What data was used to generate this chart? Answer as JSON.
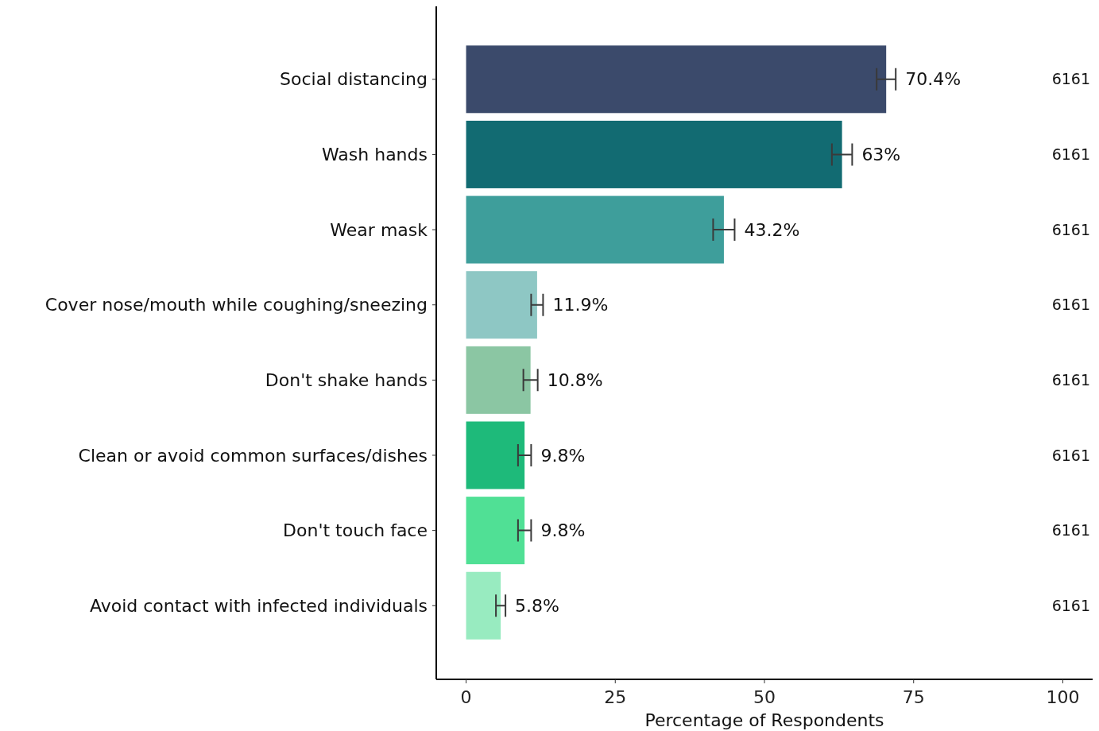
{
  "chart_data": {
    "type": "bar",
    "orientation": "horizontal",
    "xlabel": "Percentage of Respondents",
    "categories": [
      "Social distancing",
      "Wash hands",
      "Wear mask",
      "Cover nose/mouth while coughing/sneezing",
      "Don't shake hands",
      "Clean or avoid common surfaces/dishes",
      "Don't touch face",
      "Avoid contact with infected individuals"
    ],
    "values": [
      70.4,
      63,
      43.2,
      11.9,
      10.8,
      9.8,
      9.8,
      5.8
    ],
    "colors": [
      "#3b4a6b",
      "#126b72",
      "#3e9e9b",
      "#8ec7c4",
      "#8bc6a3",
      "#1eba7a",
      "#50e095",
      "#98ebc0"
    ],
    "errors": [
      1.6,
      1.7,
      1.8,
      1.0,
      1.2,
      1.1,
      1.1,
      0.8
    ],
    "value_labels": [
      "70.4%",
      "63%",
      "43.2%",
      "11.9%",
      "10.8%",
      "9.8%",
      "9.8%",
      "5.8%"
    ],
    "xlim": [
      -5,
      105
    ],
    "xticks": [
      0,
      25,
      50,
      75,
      100
    ],
    "annotations": [
      "6161",
      "6161",
      "6161",
      "6161",
      "6161",
      "6161",
      "6161",
      "6161"
    ],
    "grid": false
  }
}
